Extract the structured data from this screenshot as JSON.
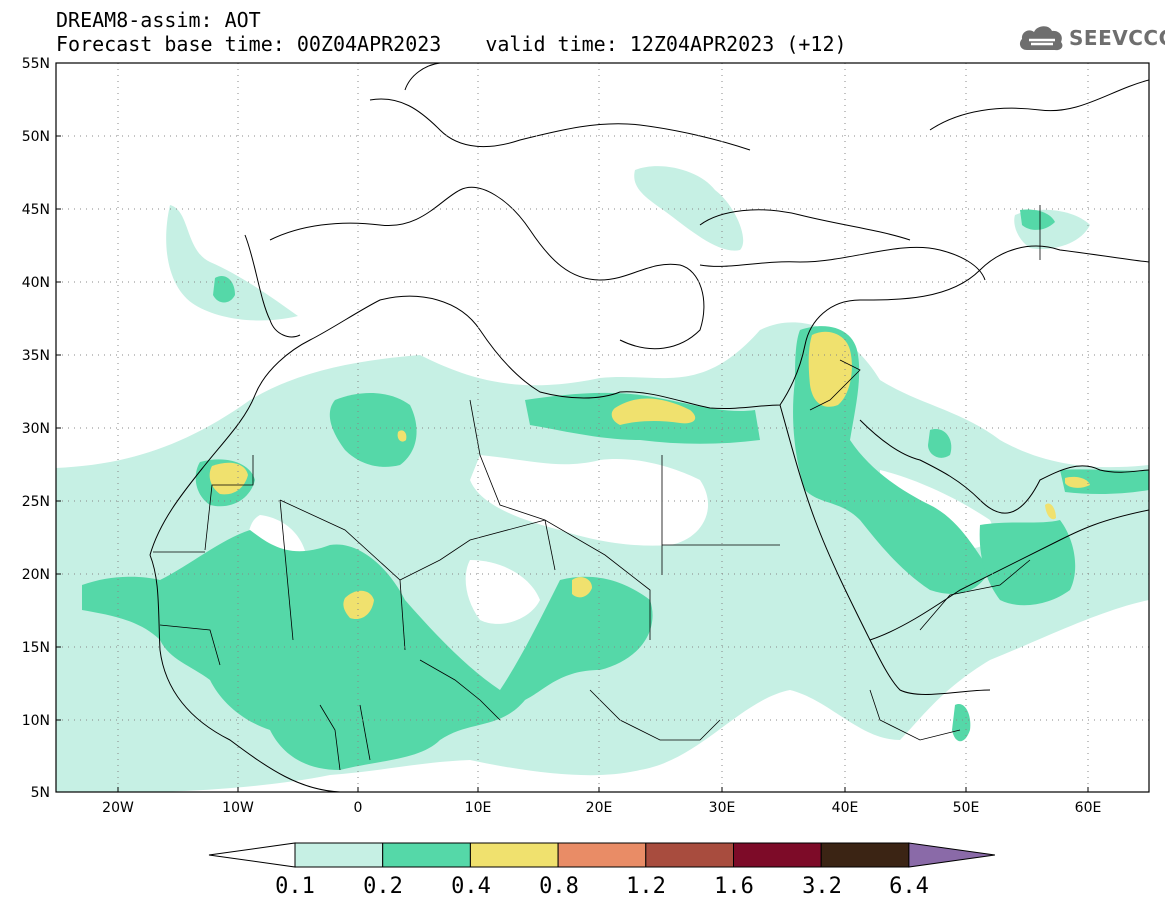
{
  "header": {
    "title_line1": "DREAM8-assim: AOT",
    "base_time": "Forecast base time: 00Z04APR2023",
    "valid_time": "valid time: 12Z04APR2023 (+12)",
    "logo_text": "SEEVCCC"
  },
  "map": {
    "projection": "lat-lon",
    "lon_range": [
      -25,
      65
    ],
    "lat_range": [
      5,
      55
    ],
    "grid": "dotted",
    "lat_labels": [
      "55N",
      "50N",
      "45N",
      "40N",
      "35N",
      "30N",
      "25N",
      "20N",
      "15N",
      "10N",
      "5N"
    ],
    "lon_labels": [
      "20W",
      "10W",
      "0",
      "10E",
      "20E",
      "30E",
      "40E",
      "50E",
      "60E"
    ],
    "field_colors": {
      "0.1-0.2": "#c6f0e4",
      "0.2-0.4": "#55d8a8",
      "0.4-0.8": "#f0e16e"
    }
  },
  "legend": {
    "levels": [
      "0.1",
      "0.2",
      "0.4",
      "0.8",
      "1.2",
      "1.6",
      "3.2",
      "6.4"
    ],
    "colors": [
      "#c6f0e4",
      "#55d8a8",
      "#f0e16e",
      "#e98c66",
      "#a84c3e",
      "#7d0b28",
      "#3b2414",
      "#8a6aa8"
    ]
  }
}
